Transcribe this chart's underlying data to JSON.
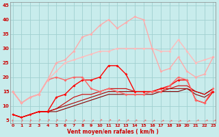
{
  "xlabel": "Vent moyen/en rafales ( km/h )",
  "x": [
    0,
    1,
    2,
    3,
    4,
    5,
    6,
    7,
    8,
    9,
    10,
    11,
    12,
    13,
    14,
    15,
    16,
    17,
    18,
    19,
    20,
    21,
    22,
    23
  ],
  "lines": [
    {
      "y": [
        7,
        6,
        7,
        8,
        8,
        8,
        9,
        10,
        11,
        12,
        13,
        14,
        14,
        14,
        14,
        14,
        14,
        15,
        15,
        15,
        16,
        14,
        13,
        15
      ],
      "color": "#880000",
      "lw": 0.8,
      "marker": null,
      "ms": 0,
      "zorder": 2
    },
    {
      "y": [
        7,
        6,
        7,
        8,
        8,
        9,
        10,
        11,
        12,
        13,
        14,
        15,
        15,
        15,
        15,
        15,
        15,
        15,
        16,
        16,
        16,
        15,
        14,
        16
      ],
      "color": "#aa0000",
      "lw": 0.8,
      "marker": null,
      "ms": 0,
      "zorder": 2
    },
    {
      "y": [
        7,
        6,
        7,
        8,
        8,
        9,
        11,
        13,
        14,
        14,
        15,
        16,
        16,
        16,
        15,
        15,
        15,
        16,
        16,
        17,
        17,
        15,
        14,
        16
      ],
      "color": "#cc0000",
      "lw": 0.8,
      "marker": null,
      "ms": 0,
      "zorder": 2
    },
    {
      "y": [
        7,
        6,
        7,
        8,
        8,
        13,
        14,
        17,
        19,
        19,
        20,
        24,
        24,
        21,
        15,
        15,
        15,
        16,
        17,
        19,
        19,
        12,
        11,
        15
      ],
      "color": "#ff0000",
      "lw": 1.0,
      "marker": "D",
      "ms": 2.0,
      "zorder": 3
    },
    {
      "y": [
        15,
        11,
        13,
        14,
        19,
        20,
        19,
        20,
        20,
        16,
        15,
        16,
        15,
        14,
        14,
        14,
        15,
        15,
        17,
        20,
        19,
        12,
        11,
        16
      ],
      "color": "#ff6666",
      "lw": 1.0,
      "marker": "D",
      "ms": 2.0,
      "zorder": 3
    },
    {
      "y": [
        15,
        11,
        13,
        14,
        19,
        22,
        25,
        26,
        27,
        28,
        29,
        29,
        30,
        30,
        30,
        30,
        30,
        29,
        29,
        33,
        29,
        25,
        26,
        27
      ],
      "color": "#ffbbbb",
      "lw": 1.0,
      "marker": "D",
      "ms": 2.0,
      "zorder": 3
    },
    {
      "y": [
        15,
        11,
        13,
        14,
        19,
        25,
        26,
        29,
        34,
        35,
        38,
        40,
        37,
        39,
        41,
        40,
        30,
        22,
        23,
        27,
        22,
        20,
        21,
        27
      ],
      "color": "#ffaaaa",
      "lw": 1.0,
      "marker": "D",
      "ms": 2.0,
      "zorder": 3
    }
  ],
  "ylim": [
    4,
    46
  ],
  "yticks": [
    5,
    10,
    15,
    20,
    25,
    30,
    35,
    40,
    45
  ],
  "xlim": [
    -0.3,
    23.3
  ],
  "bg_color": "#c8ecec",
  "grid_color": "#a0d0d0",
  "text_color": "#cc0000",
  "arrow_color": "#ff4444",
  "arrow_angles_deg": [
    0,
    15,
    20,
    25,
    30,
    32,
    35,
    38,
    40,
    42,
    44,
    46,
    48,
    50,
    52,
    54,
    56,
    58,
    60,
    62,
    63,
    65,
    66,
    67
  ]
}
